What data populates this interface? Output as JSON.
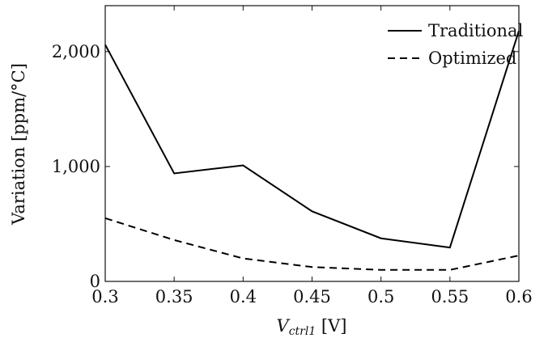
{
  "chart_data": {
    "type": "line",
    "title": "",
    "x": [
      0.3,
      0.35,
      0.4,
      0.45,
      0.5,
      0.55,
      0.6
    ],
    "x_tick_labels": [
      "0.3",
      "0.35",
      "0.4",
      "0.45",
      "0.5",
      "0.55",
      "0.6"
    ],
    "xlim": [
      0.3,
      0.6
    ],
    "ylim": [
      0,
      2400
    ],
    "y_ticks": [
      0,
      1000,
      2000
    ],
    "y_tick_labels": [
      "0",
      "1,000",
      "2,000"
    ],
    "xlabel": {
      "main": "V",
      "subscript": "ctrl1",
      "unit": " [V]"
    },
    "ylabel": "Variation [ppm/°C]",
    "grid": false,
    "legend_position": "top-right",
    "series": [
      {
        "name": "Traditional",
        "style": "solid",
        "color": "#000000",
        "values": [
          2060,
          940,
          1010,
          610,
          375,
          295,
          2180
        ]
      },
      {
        "name": "Optimized",
        "style": "dashed",
        "color": "#000000",
        "values": [
          550,
          360,
          200,
          125,
          100,
          100,
          225
        ]
      }
    ]
  }
}
